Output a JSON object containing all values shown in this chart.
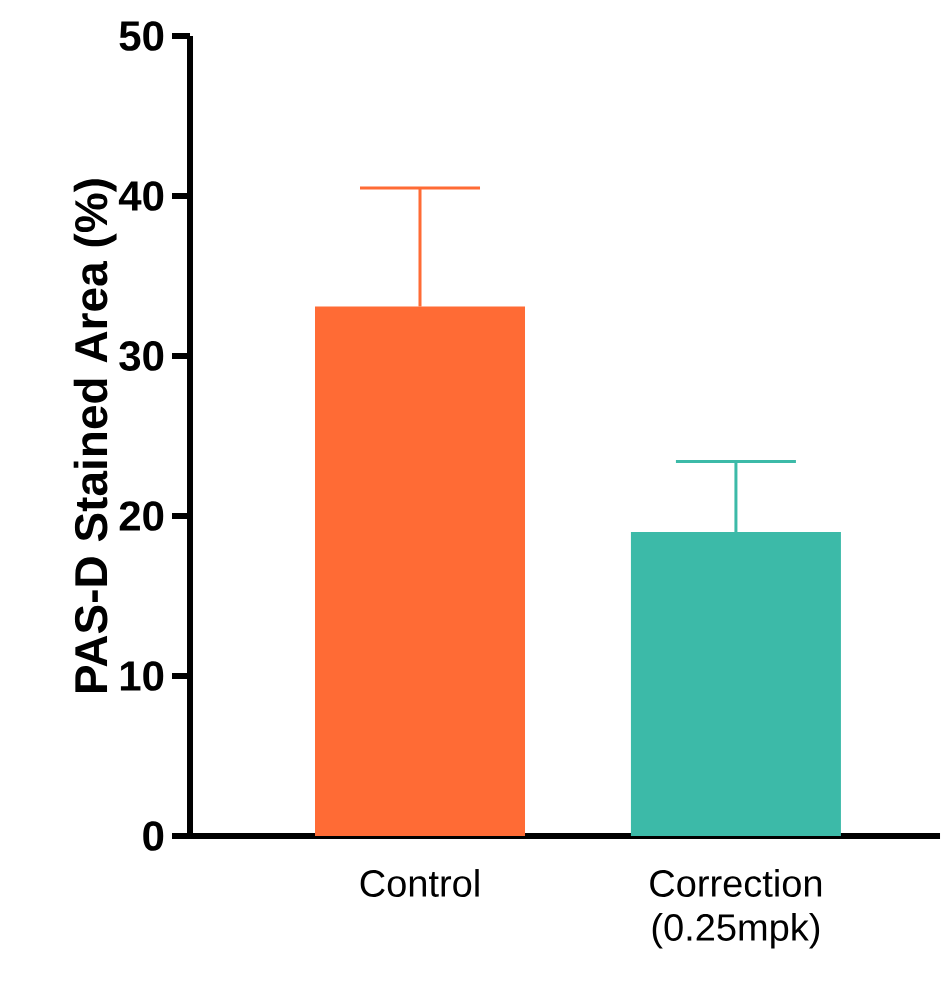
{
  "chart_data": {
    "type": "bar",
    "ylabel": "PAS-D Stained Area (%)",
    "categories": [
      "Control",
      "Correction (0.25mpk)"
    ],
    "values": [
      33.1,
      19.0
    ],
    "colors": [
      "#ff6b35",
      "#3cbaa8"
    ],
    "errors": [
      [
        33.1,
        40.5
      ],
      [
        19.0,
        23.4
      ]
    ],
    "ylim": [
      0,
      50
    ],
    "yticks": [
      0,
      10,
      20,
      30,
      40,
      50
    ],
    "grid": false
  }
}
